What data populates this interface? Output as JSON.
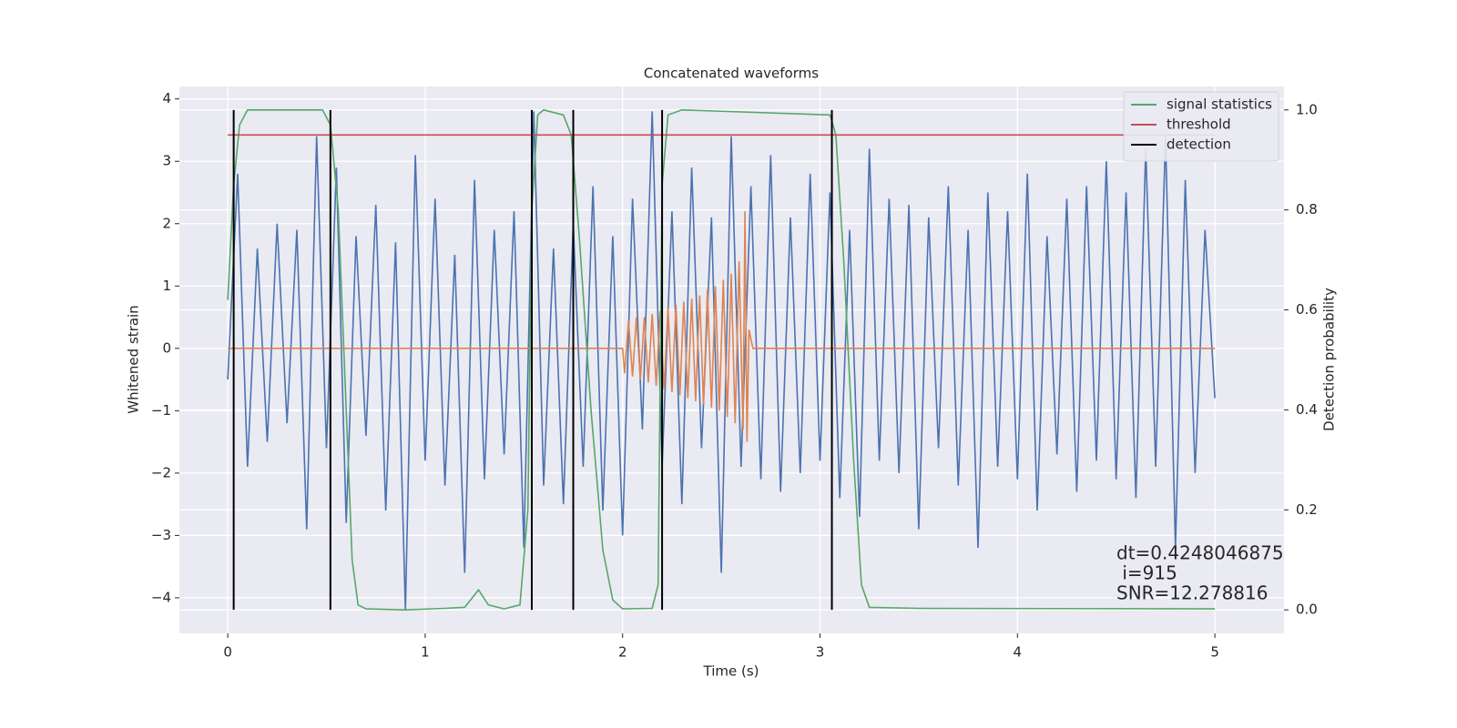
{
  "chart_data": {
    "type": "line",
    "title": "Concatenated waveforms",
    "xlabel": "Time (s)",
    "ylabel": "Whitened strain",
    "y2label": "Detection probability",
    "xlim": [
      -0.245,
      5.35
    ],
    "ylim": [
      -4.57,
      4.2
    ],
    "y2lim": [
      -0.047,
      1.047
    ],
    "xticks": [
      0,
      1,
      2,
      3,
      4,
      5
    ],
    "yticks": [
      {
        "value": -4,
        "label": "−4"
      },
      {
        "value": -3,
        "label": "−3"
      },
      {
        "value": -2,
        "label": "−2"
      },
      {
        "value": -1,
        "label": "−1"
      },
      0,
      1,
      2,
      3,
      4
    ],
    "y2ticks": [
      {
        "value": 0,
        "label": "0.0"
      },
      0.2,
      0.4,
      0.6,
      0.8,
      {
        "value": 1,
        "label": "1.0"
      }
    ],
    "grid": true,
    "legend": "upper right",
    "series": [
      {
        "color": "#4c72b0",
        "axis": "y",
        "x": [
          0,
          0.05,
          0.1,
          0.15,
          0.2,
          0.25,
          0.3,
          0.35,
          0.4,
          0.45,
          0.5,
          0.55,
          0.6,
          0.65,
          0.7,
          0.75,
          0.8,
          0.85,
          0.9,
          0.95,
          1,
          1.05,
          1.1,
          1.15,
          1.2,
          1.25,
          1.3,
          1.35,
          1.4,
          1.45,
          1.5,
          1.55,
          1.6,
          1.65,
          1.7,
          1.75,
          1.8,
          1.85,
          1.9,
          1.95,
          2,
          2.05,
          2.1,
          2.15,
          2.2,
          2.25,
          2.3,
          2.35,
          2.4,
          2.45,
          2.5,
          2.55,
          2.6,
          2.65,
          2.7,
          2.75,
          2.8,
          2.85,
          2.9,
          2.95,
          3,
          3.05,
          3.1,
          3.15,
          3.2,
          3.25,
          3.3,
          3.35,
          3.4,
          3.45,
          3.5,
          3.55,
          3.6,
          3.65,
          3.7,
          3.75,
          3.8,
          3.85,
          3.9,
          3.95,
          4,
          4.05,
          4.1,
          4.15,
          4.2,
          4.25,
          4.3,
          4.35,
          4.4,
          4.45,
          4.5,
          4.55,
          4.6,
          4.65,
          4.7,
          4.75,
          4.8,
          4.85,
          4.9,
          4.95,
          5
        ],
        "values": [
          -0.5,
          2.8,
          -1.9,
          1.6,
          -1.5,
          2.0,
          -1.2,
          1.9,
          -2.9,
          3.4,
          -1.6,
          2.9,
          -2.8,
          1.8,
          -1.4,
          2.3,
          -2.6,
          1.7,
          -4.2,
          3.1,
          -1.8,
          2.4,
          -2.2,
          1.5,
          -3.6,
          2.7,
          -2.1,
          1.9,
          -1.7,
          2.2,
          -3.2,
          3.8,
          -2.2,
          1.6,
          -2.5,
          2.0,
          -1.9,
          2.6,
          -2.6,
          1.8,
          -3.0,
          2.4,
          -1.3,
          3.8,
          -1.9,
          2.2,
          -2.5,
          2.9,
          -1.6,
          2.1,
          -3.6,
          3.4,
          -1.9,
          2.6,
          -2.1,
          3.1,
          -2.3,
          2.1,
          -2.0,
          2.8,
          -1.8,
          2.5,
          -2.4,
          1.9,
          -2.7,
          3.2,
          -1.8,
          2.4,
          -2.0,
          2.3,
          -2.9,
          2.1,
          -1.6,
          2.6,
          -2.2,
          1.9,
          -3.2,
          2.5,
          -1.9,
          2.2,
          -2.1,
          2.8,
          -2.6,
          1.8,
          -1.7,
          2.4,
          -2.3,
          2.6,
          -1.8,
          3.0,
          -2.1,
          2.5,
          -2.4,
          3.2,
          -1.9,
          3.4,
          -3.2,
          2.7,
          -2.0,
          1.9,
          -0.8
        ]
      },
      {
        "color": "#dd8452",
        "axis": "y",
        "x": [
          0,
          2.0,
          2.01,
          2.03,
          2.05,
          2.07,
          2.09,
          2.11,
          2.13,
          2.15,
          2.17,
          2.19,
          2.21,
          2.23,
          2.25,
          2.27,
          2.29,
          2.31,
          2.33,
          2.35,
          2.37,
          2.39,
          2.41,
          2.43,
          2.45,
          2.47,
          2.49,
          2.51,
          2.53,
          2.55,
          2.57,
          2.59,
          2.61,
          2.62,
          2.63,
          2.64,
          2.66,
          5
        ],
        "values": [
          0,
          0,
          -0.4,
          0.45,
          -0.45,
          0.5,
          -0.5,
          0.5,
          -0.55,
          0.55,
          -0.6,
          0.6,
          -0.65,
          0.65,
          -0.7,
          0.7,
          -0.75,
          0.75,
          -0.8,
          0.8,
          -0.85,
          0.85,
          -0.9,
          0.95,
          -0.95,
          1.0,
          -1.0,
          1.1,
          -1.1,
          1.2,
          -1.2,
          1.4,
          -1.3,
          2.2,
          -1.5,
          0.3,
          0,
          0
        ]
      },
      {
        "name": "signal statistics",
        "color": "#55a868",
        "axis": "y2",
        "x": [
          0,
          0.03,
          0.06,
          0.1,
          0.48,
          0.52,
          0.56,
          0.6,
          0.63,
          0.66,
          0.7,
          0.9,
          1.1,
          1.2,
          1.27,
          1.32,
          1.4,
          1.48,
          1.52,
          1.54,
          1.57,
          1.6,
          1.7,
          1.74,
          1.78,
          1.84,
          1.9,
          1.95,
          2.0,
          2.15,
          2.18,
          2.2,
          2.23,
          2.3,
          3.05,
          3.08,
          3.12,
          3.17,
          3.21,
          3.25,
          3.5,
          5
        ],
        "values": [
          0.62,
          0.85,
          0.97,
          1.0,
          1.0,
          0.97,
          0.8,
          0.4,
          0.1,
          0.01,
          0.002,
          0,
          0.003,
          0.005,
          0.04,
          0.01,
          0.002,
          0.01,
          0.2,
          0.8,
          0.99,
          1.0,
          0.99,
          0.95,
          0.75,
          0.4,
          0.12,
          0.02,
          0.002,
          0.003,
          0.05,
          0.85,
          0.99,
          1.0,
          0.99,
          0.95,
          0.7,
          0.3,
          0.05,
          0.005,
          0.003,
          0.002
        ]
      },
      {
        "name": "threshold",
        "color": "#c44e52",
        "axis": "y2",
        "x": [
          0,
          5
        ],
        "values": [
          0.95,
          0.95
        ]
      }
    ],
    "detection": {
      "name": "detection",
      "color": "#000000",
      "axis": "y2",
      "x": [
        0.03,
        0.52,
        1.54,
        1.75,
        2.2,
        3.06
      ],
      "span": [
        0,
        1
      ]
    },
    "annotations": [
      "dt=0.4248046875",
      " i=915",
      "SNR=12.278816"
    ]
  }
}
